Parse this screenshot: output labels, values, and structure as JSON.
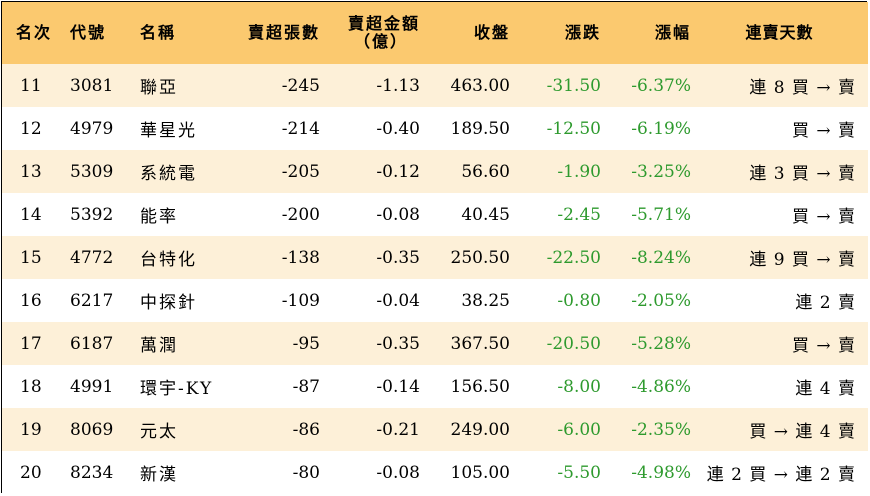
{
  "headers": {
    "rank": "名次",
    "code": "代號",
    "name": "名稱",
    "sell_lots": "賣超張數",
    "sell_amount_line1": "賣超金額",
    "sell_amount_line2": "（億）",
    "close": "收盤",
    "change": "漲跌",
    "pct": "漲幅",
    "streak": "連賣天數"
  },
  "rows": [
    {
      "rank": "11",
      "code": "3081",
      "name": "聯亞",
      "sell_lots": "-245",
      "sell_amount": "-1.13",
      "close": "463.00",
      "change": "-31.50",
      "pct": "-6.37%",
      "streak": "連 8 買 → 賣"
    },
    {
      "rank": "12",
      "code": "4979",
      "name": "華星光",
      "sell_lots": "-214",
      "sell_amount": "-0.40",
      "close": "189.50",
      "change": "-12.50",
      "pct": "-6.19%",
      "streak": "買 → 賣"
    },
    {
      "rank": "13",
      "code": "5309",
      "name": "系統電",
      "sell_lots": "-205",
      "sell_amount": "-0.12",
      "close": "56.60",
      "change": "-1.90",
      "pct": "-3.25%",
      "streak": "連 3 買 → 賣"
    },
    {
      "rank": "14",
      "code": "5392",
      "name": "能率",
      "sell_lots": "-200",
      "sell_amount": "-0.08",
      "close": "40.45",
      "change": "-2.45",
      "pct": "-5.71%",
      "streak": "買 → 賣"
    },
    {
      "rank": "15",
      "code": "4772",
      "name": "台特化",
      "sell_lots": "-138",
      "sell_amount": "-0.35",
      "close": "250.50",
      "change": "-22.50",
      "pct": "-8.24%",
      "streak": "連 9 買 → 賣"
    },
    {
      "rank": "16",
      "code": "6217",
      "name": "中探針",
      "sell_lots": "-109",
      "sell_amount": "-0.04",
      "close": "38.25",
      "change": "-0.80",
      "pct": "-2.05%",
      "streak": "連 2 賣"
    },
    {
      "rank": "17",
      "code": "6187",
      "name": "萬潤",
      "sell_lots": "-95",
      "sell_amount": "-0.35",
      "close": "367.50",
      "change": "-20.50",
      "pct": "-5.28%",
      "streak": "買 → 賣"
    },
    {
      "rank": "18",
      "code": "4991",
      "name": "環宇-KY",
      "sell_lots": "-87",
      "sell_amount": "-0.14",
      "close": "156.50",
      "change": "-8.00",
      "pct": "-4.86%",
      "streak": "連 4 賣"
    },
    {
      "rank": "19",
      "code": "8069",
      "name": "元太",
      "sell_lots": "-86",
      "sell_amount": "-0.21",
      "close": "249.00",
      "change": "-6.00",
      "pct": "-2.35%",
      "streak": "買 → 連 4 賣"
    },
    {
      "rank": "20",
      "code": "8234",
      "name": "新漢",
      "sell_lots": "-80",
      "sell_amount": "-0.08",
      "close": "105.00",
      "change": "-5.50",
      "pct": "-4.98%",
      "streak": "連 2 買 → 連 2 賣"
    }
  ],
  "colors": {
    "header_bg": "#fbc96f",
    "stripe_bg": "#fdf0d8",
    "negative_change": "#2e9a2e"
  }
}
